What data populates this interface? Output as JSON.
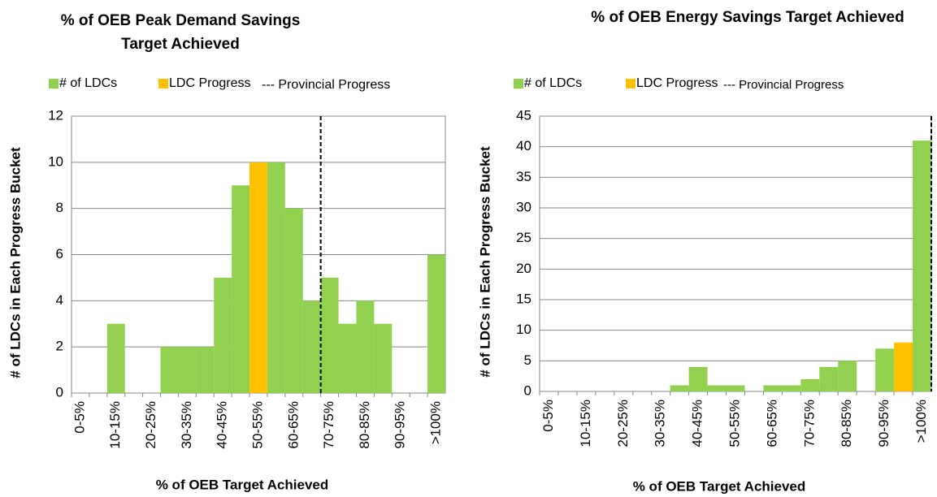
{
  "chart_data": [
    {
      "type": "bar",
      "title": [
        "% of OEB Peak Demand Savings",
        "Target Achieved"
      ],
      "x_label": "% of OEB Target Achieved",
      "y_label": "# of LDCs in Each Progress Bucket",
      "categories": [
        "0-5%",
        null,
        "10-15%",
        null,
        "20-25%",
        null,
        "30-35%",
        null,
        "40-45%",
        null,
        "50-55%",
        null,
        "60-65%",
        null,
        "70-75%",
        null,
        "80-85%",
        null,
        "90-95%",
        null,
        ">100%"
      ],
      "series": [
        {
          "name": "# of LDCs",
          "color": "#92d050",
          "values": [
            0,
            0,
            3,
            0,
            0,
            2,
            2,
            2,
            5,
            9,
            10,
            10,
            8,
            4,
            5,
            3,
            4,
            3,
            0,
            0,
            6
          ]
        }
      ],
      "highlight": {
        "name": "LDC Progress",
        "color": "#ffc000",
        "index": 10
      },
      "reference_line": {
        "name": "--- Provincial Progress",
        "x": 13.5
      },
      "ylim": [
        0,
        12
      ],
      "yticks": [
        0,
        2,
        4,
        6,
        8,
        10,
        12
      ],
      "grid": true
    },
    {
      "type": "bar",
      "title": [
        "% of OEB Energy Savings Target Achieved"
      ],
      "x_label": "% of OEB Target Achieved",
      "y_label": "# of LDCs in Each Progress Bucket",
      "categories": [
        "0-5%",
        null,
        "10-15%",
        null,
        "20-25%",
        null,
        "30-35%",
        null,
        "40-45%",
        null,
        "50-55%",
        null,
        "60-65%",
        null,
        "70-75%",
        null,
        "80-85%",
        null,
        "90-95%",
        null,
        ">100%"
      ],
      "series": [
        {
          "name": "# of LDCs",
          "color": "#92d050",
          "values": [
            0,
            0,
            0,
            0,
            0,
            0,
            0,
            1,
            4,
            1,
            1,
            0,
            1,
            1,
            2,
            4,
            5,
            0,
            7,
            8,
            41
          ]
        }
      ],
      "highlight": {
        "name": "LDC Progress",
        "color": "#ffc000",
        "index": 19
      },
      "reference_line": {
        "name": "--- Provincial Progress",
        "x": 20.5
      },
      "ylim": [
        0,
        45
      ],
      "yticks": [
        0,
        5,
        10,
        15,
        20,
        25,
        30,
        35,
        40,
        45
      ],
      "grid": true
    }
  ]
}
